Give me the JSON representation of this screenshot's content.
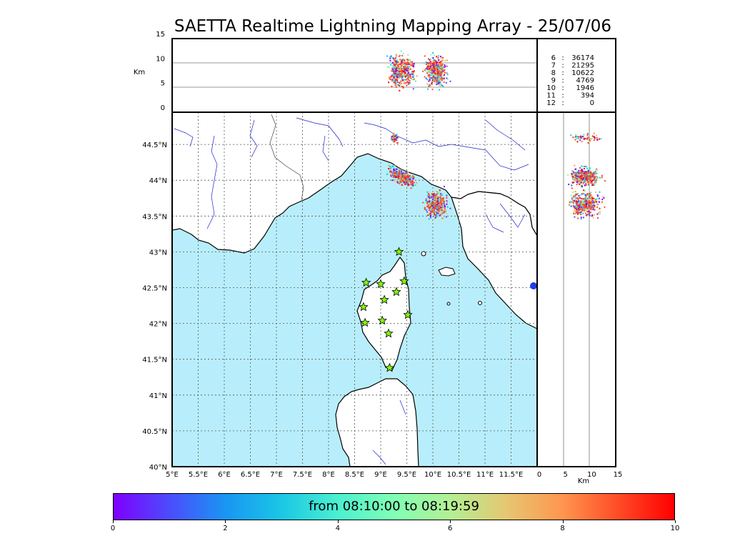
{
  "title": "SAETTA Realtime Lightning Mapping Array - 25/07/06",
  "top_panel": {
    "ylabel": "Km",
    "yticks": [
      "0",
      "5",
      "10",
      "15"
    ]
  },
  "right_panel": {
    "xlabel": "Km",
    "xticks": [
      "0",
      "5",
      "10",
      "15"
    ]
  },
  "map": {
    "lon_ticks": [
      "5°E",
      "5.5°E",
      "6°E",
      "6.5°E",
      "7°E",
      "7.5°E",
      "8°E",
      "8.5°E",
      "9°E",
      "9.5°E",
      "10°E",
      "10.5°E",
      "11°E",
      "11.5°E"
    ],
    "lat_ticks": [
      "40°N",
      "40.5°N",
      "41°N",
      "41.5°N",
      "42°N",
      "42.5°N",
      "43°N",
      "43.5°N",
      "44°N",
      "44.5°N"
    ],
    "lon_range": [
      5,
      12
    ],
    "lat_range": [
      40,
      44.95
    ],
    "sea_color": "#b8eefb",
    "land_color": "#ffffff",
    "river_color": "#2020d0",
    "station_color": "#80ff00",
    "stations": [
      {
        "lon": 9.35,
        "lat": 43.0
      },
      {
        "lon": 8.72,
        "lat": 42.57
      },
      {
        "lon": 9.0,
        "lat": 42.55
      },
      {
        "lon": 9.45,
        "lat": 42.59
      },
      {
        "lon": 9.3,
        "lat": 42.44
      },
      {
        "lon": 9.07,
        "lat": 42.33
      },
      {
        "lon": 8.67,
        "lat": 42.23
      },
      {
        "lon": 9.52,
        "lat": 42.12
      },
      {
        "lon": 8.7,
        "lat": 42.01
      },
      {
        "lon": 9.03,
        "lat": 42.04
      },
      {
        "lon": 9.15,
        "lat": 41.86
      },
      {
        "lon": 9.17,
        "lat": 41.38
      }
    ],
    "lightning_clusters": [
      {
        "lon": 9.25,
        "lat": 44.6,
        "spread_lon": 0.06,
        "spread_lat": 0.06
      },
      {
        "lon": 9.4,
        "lat": 44.05,
        "spread_lon": 0.22,
        "spread_lat": 0.12
      },
      {
        "lon": 10.05,
        "lat": 43.68,
        "spread_lon": 0.18,
        "spread_lat": 0.16
      }
    ]
  },
  "counts": [
    {
      "label": "6",
      "value": "36174",
      "color": "#ff0000"
    },
    {
      "label": "7",
      "value": "21295",
      "color": "#000000"
    },
    {
      "label": "8",
      "value": "10622",
      "color": "#000000"
    },
    {
      "label": "9",
      "value": "4769",
      "color": "#000000"
    },
    {
      "label": "10",
      "value": "1946",
      "color": "#000000"
    },
    {
      "label": "11",
      "value": "394",
      "color": "#000000"
    },
    {
      "label": "12",
      "value": "0",
      "color": "#000000"
    }
  ],
  "colorbar": {
    "text": "from 08:10:00 to 08:19:59",
    "ticks": [
      "0",
      "2",
      "4",
      "6",
      "8",
      "10"
    ],
    "range": [
      0,
      10
    ]
  }
}
